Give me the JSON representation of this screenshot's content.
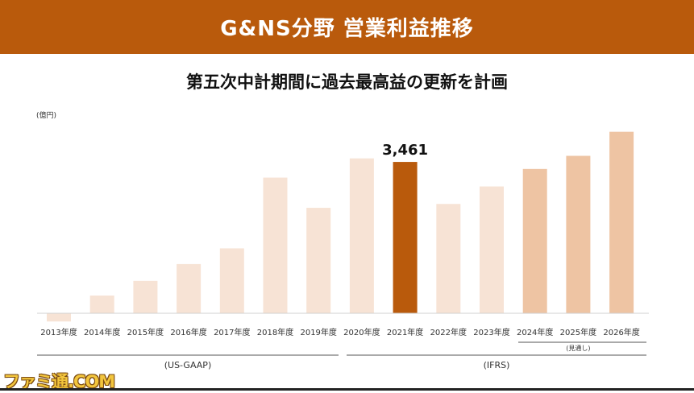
{
  "header": {
    "title": "G&NS分野 営業利益推移"
  },
  "subtitle": "第五次中計期間に過去最高益の更新を計画",
  "unit": "(億円)",
  "chart_data": {
    "type": "bar",
    "title": "G&NS分野 営業利益推移",
    "subtitle": "第五次中計期間に過去最高益の更新を計画",
    "ylabel": "(億円)",
    "categories": [
      "2013年度",
      "2014年度",
      "2015年度",
      "2016年度",
      "2017年度",
      "2018年度",
      "2019年度",
      "2020年度",
      "2021年度",
      "2022年度",
      "2023年度",
      "2024年度",
      "2025年度",
      "2026年度"
    ],
    "values": [
      -188,
      406,
      740,
      1125,
      1484,
      3102,
      2412,
      3542,
      3461,
      2500,
      2900,
      3300,
      3600,
      4150
    ],
    "ylim": [
      -400,
      4300
    ],
    "highlight_label": "3,461",
    "highlight_index": 8,
    "forecast_note": "(見通し)",
    "forecast_note_index": 12,
    "bar_colors": {
      "past": "#f7e3d5",
      "highlight": "#b95a0c",
      "plan": "#eec4a3"
    },
    "groups": [
      {
        "label": "(US-GAAP)",
        "from": 0,
        "to": 7
      },
      {
        "label": "(IFRS)",
        "from": 7,
        "to": 13
      }
    ],
    "grid": false
  },
  "watermark": "ファミ通.COM"
}
